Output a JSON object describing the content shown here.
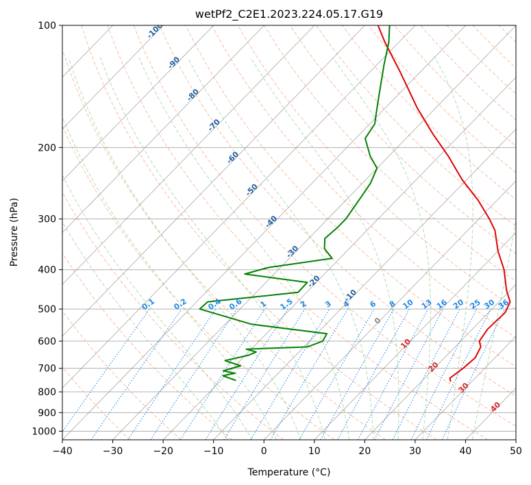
{
  "chart_data": {
    "type": "skew-t log-p",
    "title": "wetPf2_C2E1.2023.224.05.17.G19",
    "xlabel": "Temperature (°C)",
    "ylabel": "Pressure (hPa)",
    "xlim": [
      -40,
      50
    ],
    "ylim": [
      1050,
      100
    ],
    "x_ticks": [
      -40,
      -30,
      -20,
      -10,
      0,
      10,
      20,
      30,
      40,
      50
    ],
    "y_ticks": [
      100,
      200,
      300,
      400,
      500,
      600,
      700,
      800,
      900,
      1000
    ],
    "grid": true,
    "pressure_scale": "log",
    "dry_adiabat_labels": [
      "-100",
      "-90",
      "-80",
      "-70",
      "-60",
      "-50",
      "-40",
      "-30",
      "-20",
      "-10"
    ],
    "moist_adiabat_labels": [
      "0",
      "10",
      "20",
      "30",
      "40"
    ],
    "mixing_ratio_labels": [
      "0.1",
      "0.2",
      "0.4",
      "0.6",
      "1",
      "1.5",
      "2",
      "3",
      "4",
      "6",
      "8",
      "10",
      "13",
      "16",
      "20",
      "25",
      "30",
      "36"
    ],
    "colors": {
      "temperature": "#e00000",
      "dewpoint": "#008000",
      "isotherm": "#888888",
      "dry_adiabat": "#f4a582",
      "moist_adiabat": "#9fcf9f",
      "mixing_ratio": "#1e88e5",
      "dry_adiabat_label": "#1f5f9f",
      "moist_adiabat_label": "#d62728",
      "mixing_ratio_label": "#1e88e5"
    },
    "series": [
      {
        "name": "temperature",
        "points": [
          {
            "p": 755,
            "t": 25.8
          },
          {
            "p": 740,
            "t": 25.0
          },
          {
            "p": 700,
            "t": 25.7
          },
          {
            "p": 660,
            "t": 26.1
          },
          {
            "p": 620,
            "t": 25.1
          },
          {
            "p": 600,
            "t": 23.7
          },
          {
            "p": 560,
            "t": 23.0
          },
          {
            "p": 510,
            "t": 23.3
          },
          {
            "p": 480,
            "t": 22.2
          },
          {
            "p": 450,
            "t": 19.3
          },
          {
            "p": 400,
            "t": 14.8
          },
          {
            "p": 360,
            "t": 10.0
          },
          {
            "p": 320,
            "t": 5.4
          },
          {
            "p": 300,
            "t": 2.1
          },
          {
            "p": 270,
            "t": -3.7
          },
          {
            "p": 240,
            "t": -10.9
          },
          {
            "p": 210,
            "t": -18.2
          },
          {
            "p": 185,
            "t": -25.6
          },
          {
            "p": 160,
            "t": -33.6
          },
          {
            "p": 130,
            "t": -44.1
          },
          {
            "p": 110,
            "t": -52.8
          },
          {
            "p": 100,
            "t": -57.4
          }
        ]
      },
      {
        "name": "dewpoint",
        "points": [
          {
            "p": 750,
            "t": -17.0
          },
          {
            "p": 730,
            "t": -20.5
          },
          {
            "p": 720,
            "t": -18.6
          },
          {
            "p": 710,
            "t": -21.4
          },
          {
            "p": 690,
            "t": -18.9
          },
          {
            "p": 670,
            "t": -23.0
          },
          {
            "p": 650,
            "t": -19.4
          },
          {
            "p": 638,
            "t": -18.5
          },
          {
            "p": 628,
            "t": -21.0
          },
          {
            "p": 620,
            "t": -9.3
          },
          {
            "p": 600,
            "t": -7.4
          },
          {
            "p": 575,
            "t": -8.0
          },
          {
            "p": 545,
            "t": -24.8
          },
          {
            "p": 500,
            "t": -38.0
          },
          {
            "p": 480,
            "t": -37.8
          },
          {
            "p": 455,
            "t": -21.7
          },
          {
            "p": 430,
            "t": -21.8
          },
          {
            "p": 410,
            "t": -35.8
          },
          {
            "p": 395,
            "t": -32.4
          },
          {
            "p": 375,
            "t": -21.5
          },
          {
            "p": 355,
            "t": -24.9
          },
          {
            "p": 335,
            "t": -26.8
          },
          {
            "p": 315,
            "t": -26.4
          },
          {
            "p": 300,
            "t": -26.4
          },
          {
            "p": 265,
            "t": -27.6
          },
          {
            "p": 245,
            "t": -28.4
          },
          {
            "p": 225,
            "t": -30.0
          },
          {
            "p": 210,
            "t": -33.7
          },
          {
            "p": 190,
            "t": -38.1
          },
          {
            "p": 175,
            "t": -39.0
          },
          {
            "p": 160,
            "t": -41.6
          },
          {
            "p": 140,
            "t": -45.4
          },
          {
            "p": 125,
            "t": -48.6
          },
          {
            "p": 110,
            "t": -52.0
          },
          {
            "p": 100,
            "t": -55.1
          }
        ]
      }
    ]
  }
}
